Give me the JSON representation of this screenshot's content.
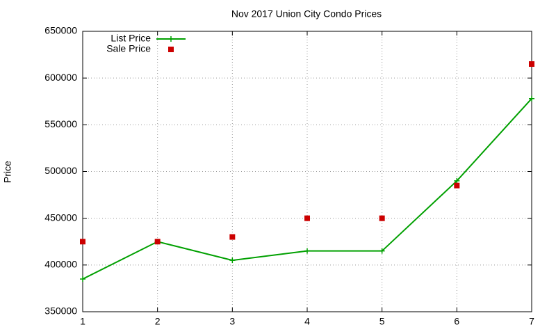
{
  "chart_data": {
    "type": "line",
    "title": "Nov 2017 Union City Condo Prices",
    "y_label": "Price",
    "x": [
      1,
      2,
      3,
      4,
      5,
      6,
      7
    ],
    "series": [
      {
        "name": "List Price",
        "color": "#00a000",
        "style": "linespoints",
        "values": [
          385000,
          425000,
          405000,
          415000,
          415000,
          490000,
          578000
        ]
      },
      {
        "name": "Sale Price",
        "color": "#cc0000",
        "style": "points",
        "values": [
          425000,
          425000,
          430000,
          450000,
          450000,
          485000,
          615000
        ]
      }
    ],
    "xlim": [
      1,
      7
    ],
    "xticks": [
      1,
      2,
      3,
      4,
      5,
      6,
      7
    ],
    "ylim": [
      350000,
      650000
    ],
    "yticks": [
      350000,
      400000,
      450000,
      500000,
      550000,
      600000,
      650000
    ],
    "grid": true,
    "legend": "top-left"
  }
}
